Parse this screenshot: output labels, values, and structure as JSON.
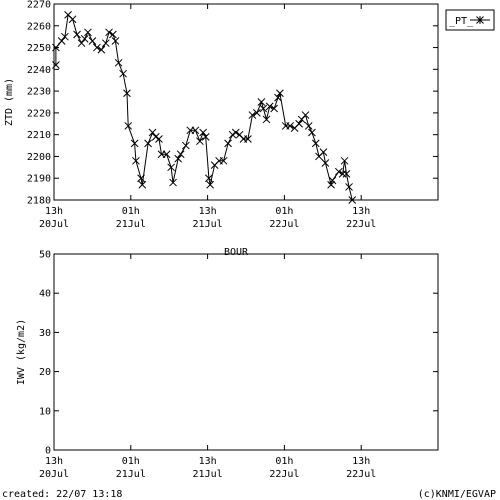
{
  "chart_data": [
    {
      "type": "line",
      "title": "",
      "ylabel": "ZTD (mm)",
      "xlabel": "",
      "ylim": [
        2180,
        2270
      ],
      "yticks": [
        2180,
        2190,
        2200,
        2210,
        2220,
        2230,
        2240,
        2250,
        2260,
        2270
      ],
      "xlim": [
        0,
        60
      ],
      "xticks": [
        {
          "x": 0,
          "line1": "13h",
          "line2": "20Jul"
        },
        {
          "x": 12,
          "line1": "01h",
          "line2": "21Jul"
        },
        {
          "x": 24,
          "line1": "13h",
          "line2": "21Jul"
        },
        {
          "x": 36,
          "line1": "01h",
          "line2": "22Jul"
        },
        {
          "x": 48,
          "line1": "13h",
          "line2": "22Jul"
        }
      ],
      "legend": {
        "placement": "top-right"
      },
      "series": [
        {
          "name": "_PT_",
          "color": "#000000",
          "marker": "star",
          "points": [
            [
              0.3,
              2242
            ],
            [
              0.3,
              2250
            ],
            [
              1.2,
              2253
            ],
            [
              1.7,
              2255
            ],
            [
              2.2,
              2265
            ],
            [
              2.9,
              2263
            ],
            [
              3.6,
              2256
            ],
            [
              4.3,
              2252
            ],
            [
              4.8,
              2254
            ],
            [
              5.3,
              2257
            ],
            [
              6.0,
              2253
            ],
            [
              6.7,
              2250
            ],
            [
              7.4,
              2249
            ],
            [
              8.1,
              2252
            ],
            [
              8.6,
              2257
            ],
            [
              9.2,
              2256
            ],
            [
              9.6,
              2253
            ],
            [
              10.1,
              2243
            ],
            [
              10.8,
              2238
            ],
            [
              11.4,
              2229
            ],
            [
              11.6,
              2214
            ],
            [
              12.6,
              2206
            ],
            [
              12.8,
              2198
            ],
            [
              13.6,
              2190
            ],
            [
              13.8,
              2187
            ],
            [
              14.7,
              2206
            ],
            [
              15.4,
              2211
            ],
            [
              15.9,
              2209
            ],
            [
              16.4,
              2208
            ],
            [
              16.8,
              2201
            ],
            [
              17.6,
              2201
            ],
            [
              18.3,
              2195
            ],
            [
              18.6,
              2188
            ],
            [
              19.4,
              2199
            ],
            [
              19.8,
              2201
            ],
            [
              20.6,
              2205
            ],
            [
              21.3,
              2212
            ],
            [
              22.1,
              2212
            ],
            [
              22.8,
              2207
            ],
            [
              23.3,
              2211
            ],
            [
              23.7,
              2209
            ],
            [
              24.2,
              2190
            ],
            [
              24.4,
              2187
            ],
            [
              25.1,
              2196
            ],
            [
              25.8,
              2198
            ],
            [
              26.5,
              2198
            ],
            [
              27.2,
              2206
            ],
            [
              27.9,
              2210
            ],
            [
              28.4,
              2211
            ],
            [
              29.0,
              2210
            ],
            [
              29.6,
              2208
            ],
            [
              30.3,
              2208
            ],
            [
              31.0,
              2219
            ],
            [
              31.7,
              2220
            ],
            [
              32.4,
              2225
            ],
            [
              32.7,
              2222
            ],
            [
              33.2,
              2217
            ],
            [
              33.7,
              2223
            ],
            [
              34.4,
              2222
            ],
            [
              35.0,
              2227
            ],
            [
              35.3,
              2229
            ],
            [
              36.2,
              2214
            ],
            [
              36.9,
              2214
            ],
            [
              37.6,
              2213
            ],
            [
              38.3,
              2215
            ],
            [
              38.7,
              2217
            ],
            [
              39.3,
              2219
            ],
            [
              39.8,
              2214
            ],
            [
              40.3,
              2211
            ],
            [
              40.9,
              2206
            ],
            [
              41.4,
              2200
            ],
            [
              42.1,
              2202
            ],
            [
              42.4,
              2197
            ],
            [
              43.3,
              2187
            ],
            [
              43.5,
              2189
            ],
            [
              44.5,
              2193
            ],
            [
              45.1,
              2192
            ],
            [
              45.4,
              2198
            ],
            [
              45.7,
              2192
            ],
            [
              46.1,
              2186
            ],
            [
              46.6,
              2180
            ]
          ]
        }
      ]
    },
    {
      "type": "line",
      "title": "BOUR",
      "ylabel": "IWV (kg/m2)",
      "xlabel": "",
      "ylim": [
        0,
        50
      ],
      "yticks": [
        0,
        10,
        20,
        30,
        40,
        50
      ],
      "xlim": [
        0,
        60
      ],
      "xticks": [
        {
          "x": 0,
          "line1": "13h",
          "line2": "20Jul"
        },
        {
          "x": 12,
          "line1": "01h",
          "line2": "21Jul"
        },
        {
          "x": 24,
          "line1": "13h",
          "line2": "21Jul"
        },
        {
          "x": 36,
          "line1": "01h",
          "line2": "22Jul"
        },
        {
          "x": 48,
          "line1": "13h",
          "line2": "22Jul"
        }
      ],
      "series": []
    }
  ],
  "footer": {
    "left": "created: 22/07 13:18",
    "right": "(c)KNMI/EGVAP"
  }
}
